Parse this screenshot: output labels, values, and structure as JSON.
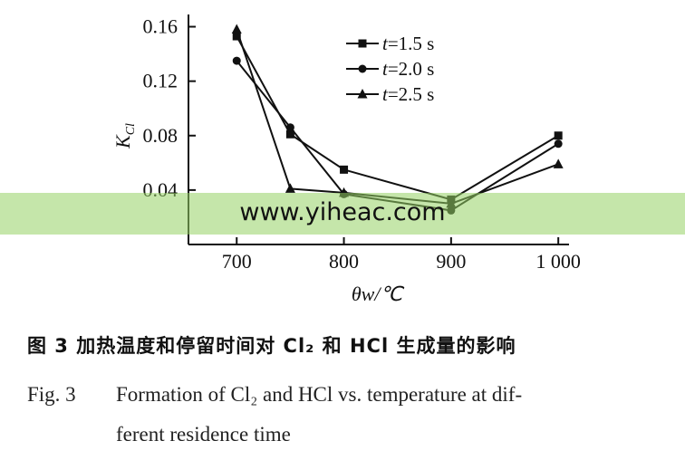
{
  "chart_data": {
    "type": "line",
    "x": [
      700,
      750,
      800,
      900,
      1000
    ],
    "x_ticks": [
      "700",
      "800",
      "900",
      "1 000"
    ],
    "x_tick_values": [
      700,
      800,
      900,
      1000
    ],
    "xlim": [
      655,
      1010
    ],
    "y_ticks": [
      "0.04",
      "0.08",
      "0.12",
      "0.16"
    ],
    "y_tick_values": [
      0.04,
      0.08,
      0.12,
      0.16
    ],
    "ylim": [
      0.0,
      0.165
    ],
    "xlabel": "θw/℃",
    "ylabel": "KCl",
    "grid": false,
    "legend_position": "top-right",
    "series": [
      {
        "name": "t=1.5 s",
        "marker": "square",
        "values": [
          0.153,
          0.081,
          0.055,
          0.033,
          0.08
        ]
      },
      {
        "name": "t=2.0 s",
        "marker": "circle",
        "values": [
          0.135,
          0.086,
          0.037,
          0.025,
          0.074
        ]
      },
      {
        "name": "t=2.5 s",
        "marker": "triangle",
        "values": [
          0.158,
          0.041,
          0.038,
          0.03,
          0.059
        ]
      }
    ]
  },
  "caption": {
    "cn": "图 3   加热温度和停留时间对 Cl₂ 和 HCl 生成量的影响",
    "fig_label": "Fig. 3",
    "en_line1": "Formation of Cl₂ and HCl vs. temperature at dif-",
    "en_line2": "ferent residence time"
  },
  "watermark": "www.yiheac.com"
}
